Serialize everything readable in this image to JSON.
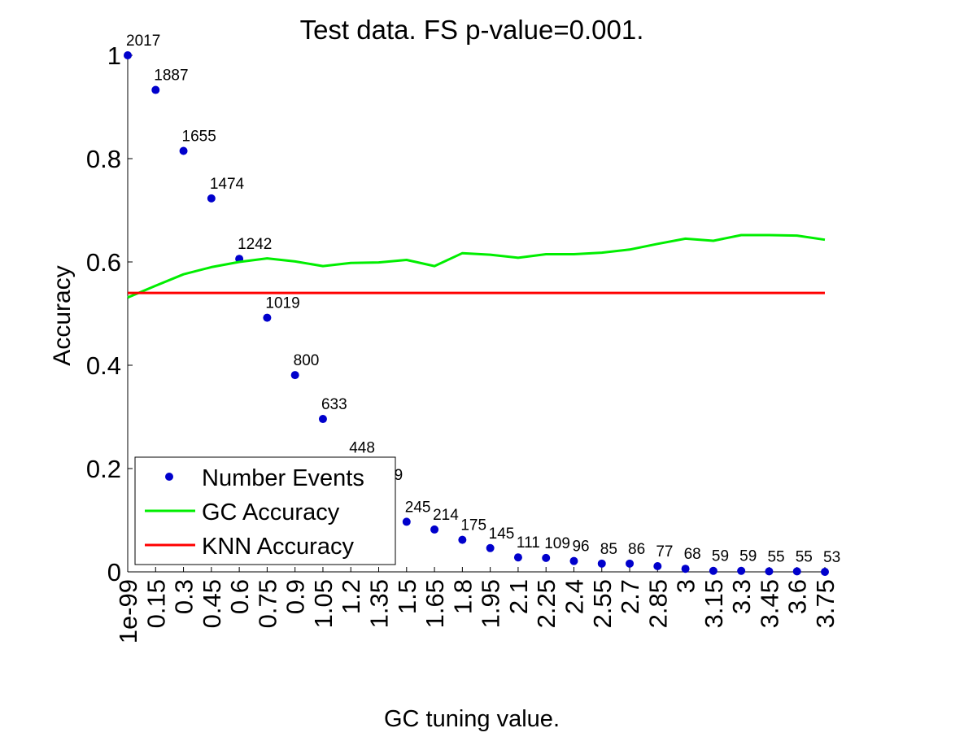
{
  "chart_data": {
    "type": "scatter",
    "title": "Test data. FS p-value=0.001.",
    "xlabel": "GC tuning value.",
    "ylabel": "Accuracy",
    "ylim": [
      0,
      1
    ],
    "y_ticks": [
      "0",
      "0.2",
      "0.4",
      "0.6",
      "0.8",
      "1"
    ],
    "x_tick_labels": [
      "1e-99",
      "0.15",
      "0.3",
      "0.45",
      "0.6",
      "0.75",
      "0.9",
      "1.05",
      "1.2",
      "1.35",
      "1.5",
      "1.65",
      "1.8",
      "1.95",
      "2.1",
      "2.25",
      "2.4",
      "2.55",
      "2.7",
      "2.85",
      "3",
      "3.15",
      "3.3",
      "3.45",
      "3.6",
      "3.75"
    ],
    "grid": false,
    "legend_position": "bottom-left",
    "series": [
      {
        "name": "Number Events",
        "kind": "scatter",
        "color": "#0000cc",
        "values": [
          1.0,
          0.933,
          0.815,
          0.723,
          0.606,
          0.492,
          0.381,
          0.296,
          0.212,
          0.159,
          0.097,
          0.082,
          0.062,
          0.046,
          0.028,
          0.027,
          0.021,
          0.016,
          0.016,
          0.011,
          0.006,
          0.002,
          0.002,
          0.001,
          0.001,
          0.0
        ],
        "labels": [
          "2017",
          "1887",
          "1655",
          "1474",
          "1242",
          "1019",
          "800",
          "633",
          "448",
          "349",
          "245",
          "214",
          "175",
          "145",
          "111",
          "109",
          "96",
          "85",
          "86",
          "77",
          "68",
          "59",
          "59",
          "55",
          "55",
          "53"
        ]
      },
      {
        "name": "GC Accuracy",
        "kind": "line",
        "color": "#00ee00",
        "values": [
          0.531,
          0.554,
          0.576,
          0.59,
          0.6,
          0.607,
          0.601,
          0.592,
          0.598,
          0.599,
          0.604,
          0.592,
          0.617,
          0.614,
          0.608,
          0.615,
          0.615,
          0.618,
          0.624,
          0.635,
          0.645,
          0.641,
          0.652,
          0.652,
          0.651,
          0.643
        ]
      },
      {
        "name": "KNN Accuracy",
        "kind": "line",
        "color": "#ff0000",
        "values": [
          0.54,
          0.54,
          0.54,
          0.54,
          0.54,
          0.54,
          0.54,
          0.54,
          0.54,
          0.54,
          0.54,
          0.54,
          0.54,
          0.54,
          0.54,
          0.54,
          0.54,
          0.54,
          0.54,
          0.54,
          0.54,
          0.54,
          0.54,
          0.54,
          0.54,
          0.54
        ]
      }
    ]
  }
}
